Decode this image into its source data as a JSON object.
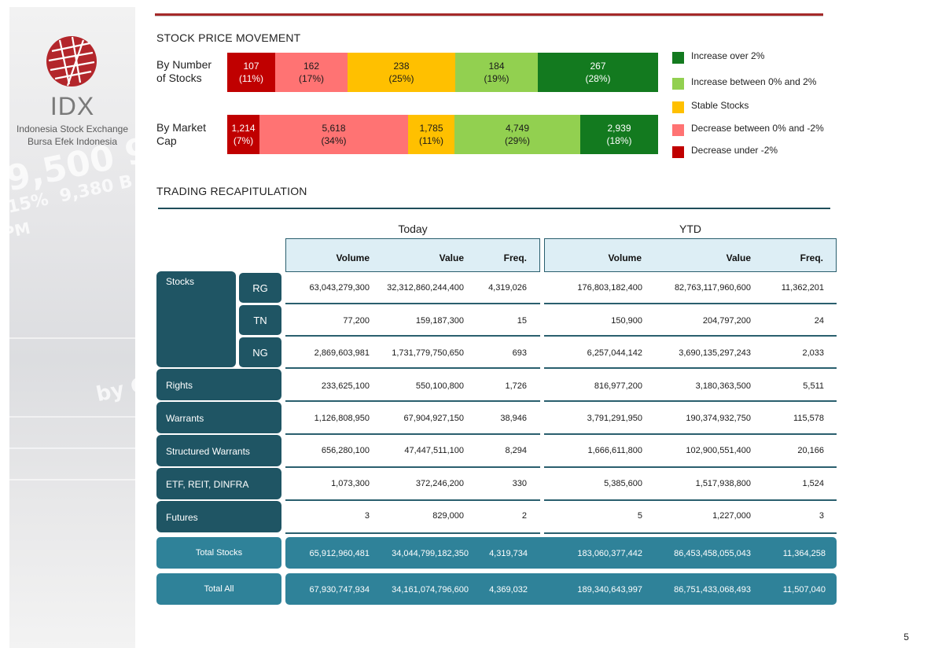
{
  "brand": {
    "name": "IDX",
    "subtitle_1": "Indonesia Stock Exchange",
    "subtitle_2": "Bursa Efek Indonesia"
  },
  "price_movement": {
    "title": "STOCK PRICE MOVEMENT",
    "by_number": {
      "label_1": "By Number",
      "label_2": "of Stocks",
      "segments": [
        {
          "value": "107",
          "pct": "(11%)"
        },
        {
          "value": "162",
          "pct": "(17%)"
        },
        {
          "value": "238",
          "pct": "(25%)"
        },
        {
          "value": "184",
          "pct": "(19%)"
        },
        {
          "value": "267",
          "pct": "(28%)"
        }
      ]
    },
    "by_market_cap": {
      "label_1": "By Market",
      "label_2": "Cap",
      "segments": [
        {
          "value": "1,214",
          "pct": "(7%)"
        },
        {
          "value": "5,618",
          "pct": "(34%)"
        },
        {
          "value": "1,785",
          "pct": "(11%)"
        },
        {
          "value": "4,749",
          "pct": "(29%)"
        },
        {
          "value": "2,939",
          "pct": "(18%)"
        }
      ]
    },
    "legend": [
      {
        "label": "Increase over 2%",
        "color": "#137a1f"
      },
      {
        "label": "Increase between 0% and 2%",
        "color": "#92d050"
      },
      {
        "label": "Stable Stocks",
        "color": "#ffc000"
      },
      {
        "label": "Decrease between 0% and -2%",
        "color": "#ff7373"
      },
      {
        "label": "Decrease under -2%",
        "color": "#c00000"
      }
    ]
  },
  "trading": {
    "title": "TRADING RECAPITULATION",
    "period_today": "Today",
    "period_ytd": "YTD",
    "columns": {
      "volume": "Volume",
      "value": "Value",
      "freq": "Freq."
    },
    "categories": {
      "stocks": "Stocks",
      "rights": "Rights",
      "warrants": "Warrants",
      "structured_warrants": "Structured Warrants",
      "etf": "ETF, REIT, DINFRA",
      "futures": "Futures"
    },
    "sub_boards": {
      "rg": "RG",
      "tn": "TN",
      "ng": "NG"
    },
    "rows": [
      {
        "today": [
          "63,043,279,300",
          "32,312,860,244,400",
          "4,319,026"
        ],
        "ytd": [
          "176,803,182,400",
          "82,763,117,960,600",
          "11,362,201"
        ]
      },
      {
        "today": [
          "77,200",
          "159,187,300",
          "15"
        ],
        "ytd": [
          "150,900",
          "204,797,200",
          "24"
        ]
      },
      {
        "today": [
          "2,869,603,981",
          "1,731,779,750,650",
          "693"
        ],
        "ytd": [
          "6,257,044,142",
          "3,690,135,297,243",
          "2,033"
        ]
      },
      {
        "today": [
          "233,625,100",
          "550,100,800",
          "1,726"
        ],
        "ytd": [
          "816,977,200",
          "3,180,363,500",
          "5,511"
        ]
      },
      {
        "today": [
          "1,126,808,950",
          "67,904,927,150",
          "38,946"
        ],
        "ytd": [
          "3,791,291,950",
          "190,374,932,750",
          "115,578"
        ]
      },
      {
        "today": [
          "656,280,100",
          "47,447,511,100",
          "8,294"
        ],
        "ytd": [
          "1,666,611,800",
          "102,900,551,400",
          "20,166"
        ]
      },
      {
        "today": [
          "1,073,300",
          "372,246,200",
          "330"
        ],
        "ytd": [
          "5,385,600",
          "1,517,938,800",
          "1,524"
        ]
      },
      {
        "today": [
          "3",
          "829,000",
          "2"
        ],
        "ytd": [
          "5",
          "1,227,000",
          "3"
        ]
      }
    ],
    "total_stocks": {
      "label": "Total Stocks",
      "today": [
        "65,912,960,481",
        "34,044,799,182,350",
        "4,319,734"
      ],
      "ytd": [
        "183,060,377,442",
        "86,453,458,055,043",
        "11,364,258"
      ]
    },
    "total_all": {
      "label": "Total All",
      "today": [
        "67,930,747,934",
        "34,161,074,796,600",
        "4,369,032"
      ],
      "ytd": [
        "189,340,643,997",
        "86,751,433,068,493",
        "11,507,040"
      ]
    }
  },
  "page_number": "5"
}
